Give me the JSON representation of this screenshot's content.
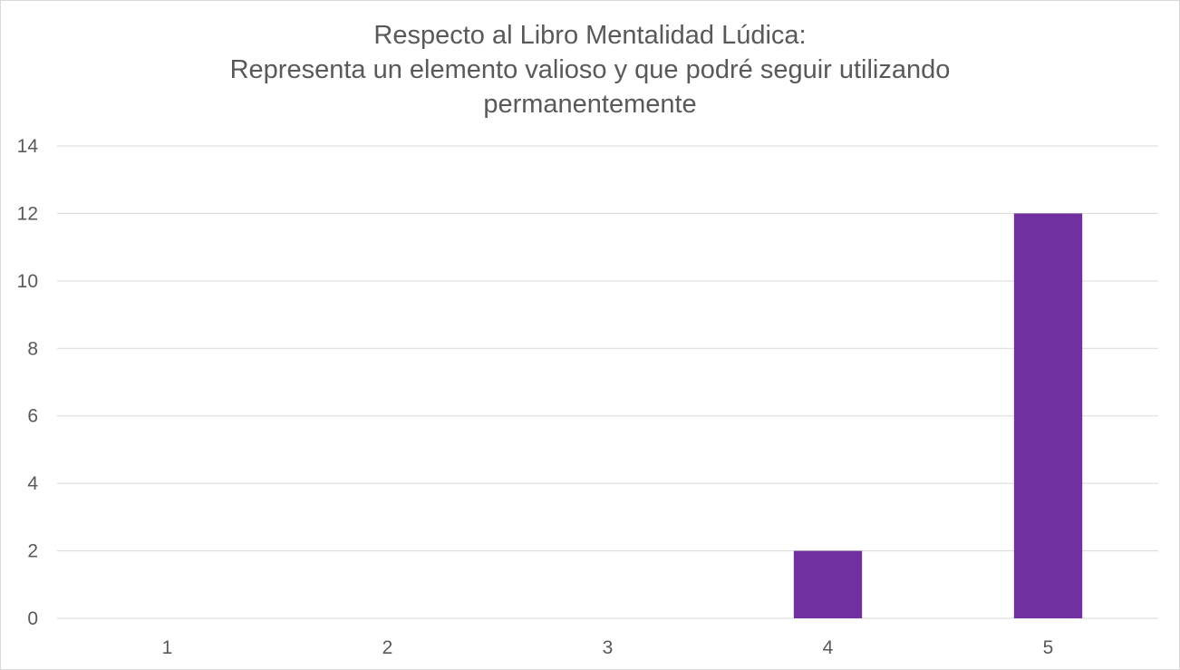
{
  "chart_data": {
    "type": "bar",
    "title_lines": [
      "Respecto al Libro Mentalidad Lúdica:",
      "Representa un elemento valioso y que podré seguir utilizando",
      "permanentemente"
    ],
    "categories": [
      "1",
      "2",
      "3",
      "4",
      "5"
    ],
    "values": [
      0,
      0,
      0,
      2,
      12
    ],
    "xlabel": "",
    "ylabel": "",
    "ylim": [
      0,
      14
    ],
    "yticks": [
      "0",
      "2",
      "4",
      "6",
      "8",
      "10",
      "12",
      "14"
    ],
    "grid": true,
    "legend": "none",
    "colors": {
      "bar": "#7030a0",
      "gridline": "#d9d9d9",
      "text": "#595959"
    }
  }
}
